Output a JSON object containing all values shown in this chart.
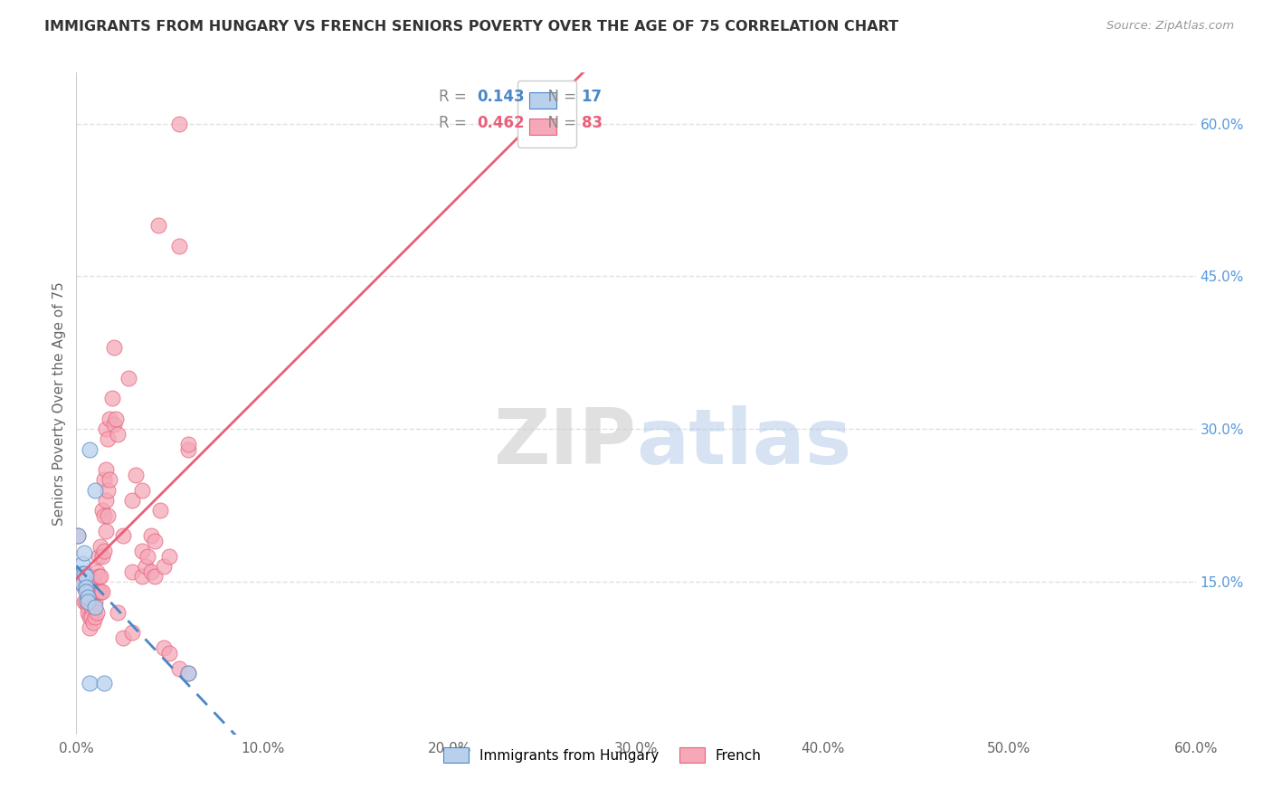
{
  "title": "IMMIGRANTS FROM HUNGARY VS FRENCH SENIORS POVERTY OVER THE AGE OF 75 CORRELATION CHART",
  "source": "Source: ZipAtlas.com",
  "ylabel": "Seniors Poverty Over the Age of 75",
  "ylabel_right_labels": [
    "60.0%",
    "45.0%",
    "30.0%",
    "15.0%"
  ],
  "ylabel_right_values": [
    60.0,
    45.0,
    30.0,
    15.0
  ],
  "x_ticks": [
    0.0,
    10.0,
    20.0,
    30.0,
    40.0,
    50.0,
    60.0
  ],
  "x_range": [
    0.0,
    60.0
  ],
  "y_range": [
    0.0,
    65.0
  ],
  "legend_blue_R": "0.143",
  "legend_blue_N": "17",
  "legend_pink_R": "0.462",
  "legend_pink_N": "83",
  "blue_color": "#b8d0eb",
  "pink_color": "#f4a8b8",
  "blue_line_color": "#4a86c8",
  "pink_line_color": "#e8607a",
  "blue_scatter": [
    [
      0.1,
      19.5
    ],
    [
      0.3,
      16.8
    ],
    [
      0.3,
      15.8
    ],
    [
      0.3,
      14.8
    ],
    [
      0.4,
      17.8
    ],
    [
      0.4,
      15.8
    ],
    [
      0.5,
      15.5
    ],
    [
      0.5,
      14.5
    ],
    [
      0.5,
      14.0
    ],
    [
      0.6,
      13.5
    ],
    [
      0.6,
      13.0
    ],
    [
      0.7,
      28.0
    ],
    [
      0.7,
      5.0
    ],
    [
      1.0,
      24.0
    ],
    [
      1.0,
      12.5
    ],
    [
      1.5,
      5.0
    ],
    [
      6.0,
      6.0
    ]
  ],
  "pink_scatter": [
    [
      0.1,
      19.5
    ],
    [
      0.2,
      15.5
    ],
    [
      0.3,
      15.0
    ],
    [
      0.4,
      14.5
    ],
    [
      0.4,
      13.0
    ],
    [
      0.5,
      15.5
    ],
    [
      0.5,
      14.5
    ],
    [
      0.5,
      13.0
    ],
    [
      0.6,
      14.0
    ],
    [
      0.6,
      12.5
    ],
    [
      0.6,
      12.0
    ],
    [
      0.7,
      15.5
    ],
    [
      0.7,
      13.5
    ],
    [
      0.7,
      11.5
    ],
    [
      0.7,
      10.5
    ],
    [
      0.8,
      15.0
    ],
    [
      0.8,
      14.0
    ],
    [
      0.8,
      12.5
    ],
    [
      0.8,
      11.5
    ],
    [
      0.9,
      15.0
    ],
    [
      0.9,
      13.5
    ],
    [
      0.9,
      11.0
    ],
    [
      1.0,
      14.5
    ],
    [
      1.0,
      13.0
    ],
    [
      1.0,
      11.5
    ],
    [
      1.1,
      16.0
    ],
    [
      1.1,
      14.0
    ],
    [
      1.1,
      12.0
    ],
    [
      1.2,
      17.5
    ],
    [
      1.2,
      15.5
    ],
    [
      1.2,
      14.0
    ],
    [
      1.3,
      18.5
    ],
    [
      1.3,
      15.5
    ],
    [
      1.3,
      14.0
    ],
    [
      1.4,
      22.0
    ],
    [
      1.4,
      17.5
    ],
    [
      1.4,
      14.0
    ],
    [
      1.5,
      25.0
    ],
    [
      1.5,
      21.5
    ],
    [
      1.5,
      18.0
    ],
    [
      1.6,
      30.0
    ],
    [
      1.6,
      26.0
    ],
    [
      1.6,
      23.0
    ],
    [
      1.6,
      20.0
    ],
    [
      1.7,
      29.0
    ],
    [
      1.7,
      24.0
    ],
    [
      1.7,
      21.5
    ],
    [
      1.8,
      31.0
    ],
    [
      1.8,
      25.0
    ],
    [
      1.9,
      33.0
    ],
    [
      2.0,
      38.0
    ],
    [
      2.0,
      30.5
    ],
    [
      2.1,
      31.0
    ],
    [
      2.2,
      29.5
    ],
    [
      2.2,
      12.0
    ],
    [
      2.5,
      9.5
    ],
    [
      2.5,
      19.5
    ],
    [
      2.8,
      35.0
    ],
    [
      3.0,
      23.0
    ],
    [
      3.0,
      16.0
    ],
    [
      3.0,
      10.0
    ],
    [
      3.2,
      25.5
    ],
    [
      3.5,
      24.0
    ],
    [
      3.5,
      18.0
    ],
    [
      3.5,
      15.5
    ],
    [
      3.7,
      16.5
    ],
    [
      3.8,
      17.5
    ],
    [
      4.0,
      19.5
    ],
    [
      4.0,
      16.0
    ],
    [
      4.2,
      19.0
    ],
    [
      4.2,
      15.5
    ],
    [
      4.4,
      50.0
    ],
    [
      4.5,
      22.0
    ],
    [
      4.7,
      16.5
    ],
    [
      4.7,
      8.5
    ],
    [
      5.0,
      17.5
    ],
    [
      5.0,
      8.0
    ],
    [
      5.5,
      60.0
    ],
    [
      5.5,
      48.0
    ],
    [
      6.0,
      28.0
    ],
    [
      5.5,
      6.5
    ],
    [
      6.0,
      28.5
    ],
    [
      6.0,
      6.0
    ]
  ],
  "watermark_text": "ZIPatlas",
  "background_color": "#ffffff",
  "grid_color": "#e0e0e0"
}
